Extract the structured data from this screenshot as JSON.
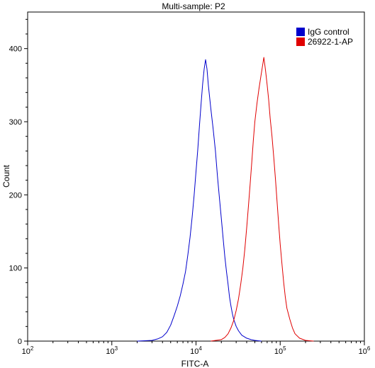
{
  "chart_data": {
    "type": "line",
    "title": "Multi-sample: P2",
    "xlabel": "FITC-A",
    "ylabel": "Count",
    "x_scale": "log",
    "xlim": [
      100,
      1000000
    ],
    "ylim": [
      0,
      450
    ],
    "x_ticks": [
      {
        "value": 100,
        "base": "10",
        "exp": "2"
      },
      {
        "value": 1000,
        "base": "10",
        "exp": "3"
      },
      {
        "value": 10000,
        "base": "10",
        "exp": "4"
      },
      {
        "value": 100000,
        "base": "10",
        "exp": "5"
      },
      {
        "value": 1000000,
        "base": "10",
        "exp": "6"
      }
    ],
    "y_ticks": [
      0,
      100,
      200,
      300,
      400
    ],
    "grid": false,
    "legend_position": "top-right",
    "series": [
      {
        "name": "IgG control",
        "color": "#0000cc",
        "points": [
          [
            2000,
            0
          ],
          [
            3000,
            1
          ],
          [
            3500,
            3
          ],
          [
            4000,
            6
          ],
          [
            4500,
            12
          ],
          [
            5000,
            22
          ],
          [
            5500,
            35
          ],
          [
            6000,
            48
          ],
          [
            6500,
            62
          ],
          [
            7000,
            78
          ],
          [
            7500,
            95
          ],
          [
            8000,
            118
          ],
          [
            8500,
            142
          ],
          [
            9000,
            170
          ],
          [
            9500,
            200
          ],
          [
            10000,
            232
          ],
          [
            10500,
            262
          ],
          [
            11000,
            295
          ],
          [
            11500,
            325
          ],
          [
            12000,
            352
          ],
          [
            12500,
            372
          ],
          [
            13000,
            385
          ],
          [
            13500,
            372
          ],
          [
            14000,
            350
          ],
          [
            15000,
            318
          ],
          [
            16000,
            290
          ],
          [
            17000,
            260
          ],
          [
            18000,
            225
          ],
          [
            19000,
            195
          ],
          [
            20000,
            168
          ],
          [
            21000,
            140
          ],
          [
            22000,
            115
          ],
          [
            23000,
            95
          ],
          [
            24000,
            78
          ],
          [
            25000,
            60
          ],
          [
            26000,
            48
          ],
          [
            27000,
            38
          ],
          [
            28000,
            30
          ],
          [
            30000,
            20
          ],
          [
            32000,
            14
          ],
          [
            35000,
            8
          ],
          [
            40000,
            4
          ],
          [
            45000,
            2
          ],
          [
            50000,
            1
          ],
          [
            60000,
            0
          ]
        ]
      },
      {
        "name": "26922-1-AP",
        "color": "#e00000",
        "points": [
          [
            15000,
            0
          ],
          [
            20000,
            2
          ],
          [
            22000,
            5
          ],
          [
            24000,
            10
          ],
          [
            26000,
            18
          ],
          [
            28000,
            28
          ],
          [
            30000,
            42
          ],
          [
            32000,
            58
          ],
          [
            34000,
            78
          ],
          [
            36000,
            100
          ],
          [
            38000,
            125
          ],
          [
            40000,
            155
          ],
          [
            42000,
            185
          ],
          [
            44000,
            215
          ],
          [
            46000,
            245
          ],
          [
            48000,
            275
          ],
          [
            50000,
            300
          ],
          [
            53000,
            325
          ],
          [
            56000,
            345
          ],
          [
            59000,
            362
          ],
          [
            62000,
            378
          ],
          [
            64000,
            388
          ],
          [
            67000,
            370
          ],
          [
            70000,
            350
          ],
          [
            73000,
            330
          ],
          [
            76000,
            305
          ],
          [
            80000,
            280
          ],
          [
            84000,
            250
          ],
          [
            88000,
            220
          ],
          [
            92000,
            190
          ],
          [
            96000,
            160
          ],
          [
            100000,
            132
          ],
          [
            105000,
            105
          ],
          [
            110000,
            80
          ],
          [
            115000,
            60
          ],
          [
            120000,
            45
          ],
          [
            130000,
            30
          ],
          [
            140000,
            18
          ],
          [
            150000,
            10
          ],
          [
            170000,
            4
          ],
          [
            200000,
            1
          ],
          [
            250000,
            0
          ]
        ]
      }
    ]
  }
}
